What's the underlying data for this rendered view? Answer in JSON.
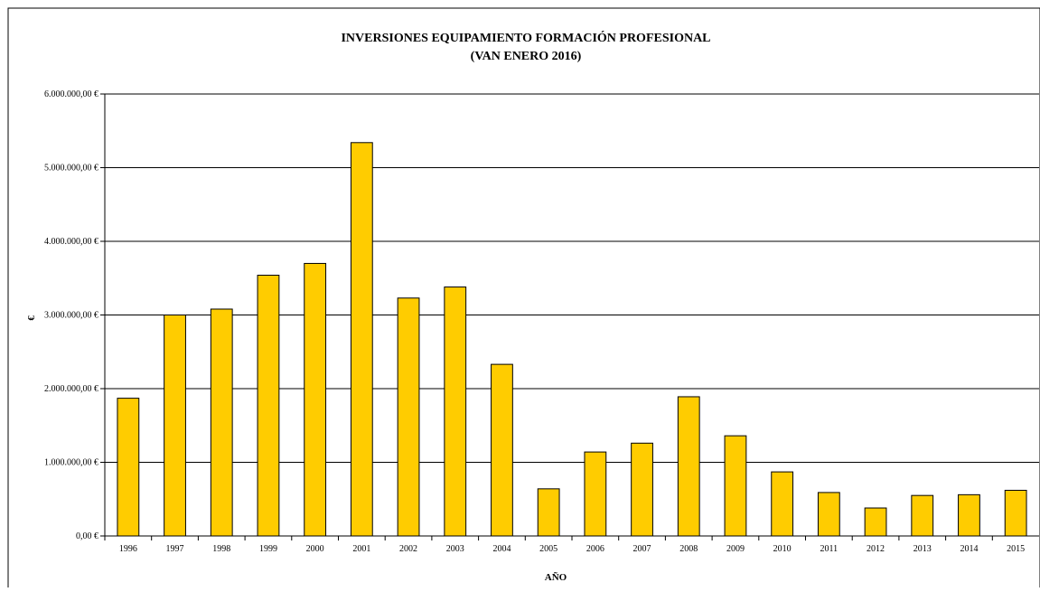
{
  "chart_data": {
    "type": "bar",
    "title": "INVERSIONES EQUIPAMIENTO FORMACIÓN PROFESIONAL",
    "subtitle": "(VAN  ENERO 2016)",
    "xlabel": "AÑO",
    "ylabel": "€",
    "ylim": [
      0,
      6000000
    ],
    "y_ticks": [
      0,
      1000000,
      2000000,
      3000000,
      4000000,
      5000000,
      6000000
    ],
    "y_tick_labels": [
      "0,00 €",
      "1.000.000,00 €",
      "2.000.000,00 €",
      "3.000.000,00 €",
      "4.000.000,00 €",
      "5.000.000,00 €",
      "6.000.000,00 €"
    ],
    "grid": true,
    "legend": "none",
    "categories": [
      "1996",
      "1997",
      "1998",
      "1999",
      "2000",
      "2001",
      "2002",
      "2003",
      "2004",
      "2005",
      "2006",
      "2007",
      "2008",
      "2009",
      "2010",
      "2011",
      "2012",
      "2013",
      "2014",
      "2015"
    ],
    "values": [
      1870000,
      3000000,
      3080000,
      3540000,
      3700000,
      5340000,
      3230000,
      3380000,
      2330000,
      640000,
      1140000,
      1260000,
      1890000,
      1360000,
      870000,
      590000,
      380000,
      550000,
      560000,
      620000
    ],
    "colors": {
      "bar_fill": "#FFCC00",
      "bar_stroke": "#000000",
      "grid": "#000000",
      "background": "#FFFFFF"
    }
  }
}
